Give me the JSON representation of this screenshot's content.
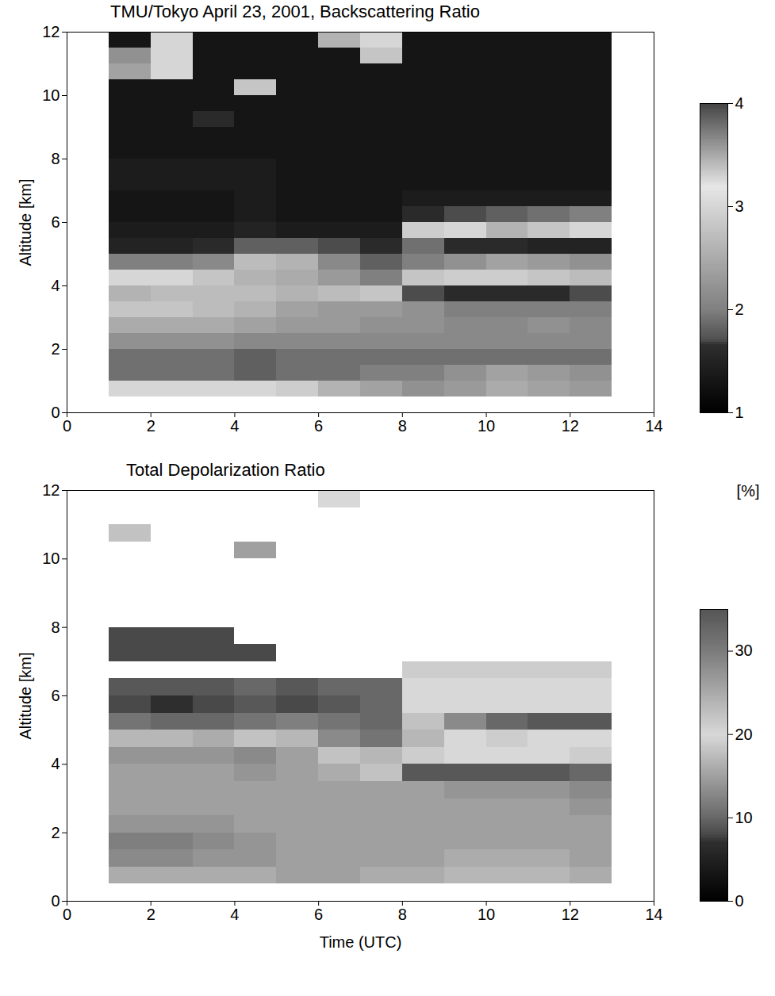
{
  "chart_data": [
    {
      "type": "heatmap",
      "title": "TMU/Tokyo April 23, 2001,  Backscattering Ratio",
      "x_label": null,
      "y_label": "Altitude [km]",
      "xlim": [
        0,
        14
      ],
      "xticks": [
        0,
        2,
        4,
        6,
        8,
        10,
        12,
        14
      ],
      "ylim": [
        0,
        12
      ],
      "yticks": [
        0,
        2,
        4,
        6,
        8,
        10,
        12
      ],
      "x_bins": [
        1,
        2,
        3,
        4,
        5,
        6,
        7,
        8,
        9,
        10,
        11,
        12,
        13
      ],
      "y_bins": [
        0.5,
        1,
        1.5,
        2,
        2.5,
        3,
        3.5,
        4,
        4.5,
        5,
        5.5,
        6,
        6.5,
        7,
        7.5,
        8,
        8.5,
        9,
        9.5,
        10,
        10.5,
        11,
        11.5,
        12
      ],
      "cells": [
        [
          3.0,
          3.0,
          3.0,
          3.0,
          2.9,
          2.6,
          2.4,
          2.2,
          2.3,
          2.5,
          2.4,
          2.3
        ],
        [
          1.9,
          1.9,
          1.9,
          1.8,
          1.9,
          1.9,
          2.0,
          2.0,
          2.2,
          2.4,
          2.3,
          2.2
        ],
        [
          1.9,
          1.9,
          1.9,
          1.8,
          1.9,
          1.9,
          1.9,
          1.9,
          1.9,
          1.9,
          1.9,
          1.9
        ],
        [
          2.2,
          2.2,
          2.2,
          2.1,
          2.1,
          2.1,
          2.1,
          2.1,
          2.1,
          2.1,
          2.1,
          2.1
        ],
        [
          2.5,
          2.5,
          2.5,
          2.4,
          2.3,
          2.3,
          2.2,
          2.2,
          2.1,
          2.1,
          2.2,
          2.1
        ],
        [
          2.8,
          2.8,
          2.7,
          2.6,
          2.4,
          2.3,
          2.3,
          2.2,
          2.0,
          2.0,
          2.0,
          2.0
        ],
        [
          2.6,
          2.7,
          2.7,
          2.7,
          2.6,
          2.7,
          2.8,
          1.7,
          1.6,
          1.6,
          1.6,
          1.7
        ],
        [
          3.0,
          3.0,
          2.8,
          2.6,
          2.5,
          2.3,
          2.0,
          2.8,
          2.9,
          2.9,
          2.8,
          2.7
        ],
        [
          2.0,
          2.0,
          2.1,
          2.7,
          2.6,
          2.1,
          1.8,
          2.0,
          2.2,
          2.4,
          2.3,
          2.2
        ],
        [
          1.5,
          1.5,
          1.6,
          1.8,
          1.8,
          1.7,
          1.6,
          1.9,
          1.6,
          1.6,
          1.5,
          1.5
        ],
        [
          1.4,
          1.4,
          1.4,
          1.5,
          1.4,
          1.4,
          1.4,
          2.9,
          3.0,
          2.6,
          2.8,
          3.0
        ],
        [
          1.3,
          1.3,
          1.3,
          1.4,
          1.3,
          1.3,
          1.3,
          1.6,
          1.7,
          1.8,
          1.9,
          2.0
        ],
        [
          1.3,
          1.3,
          1.3,
          1.4,
          1.3,
          1.3,
          1.3,
          1.4,
          1.4,
          1.4,
          1.4,
          1.4
        ],
        [
          1.4,
          1.4,
          1.4,
          1.4,
          1.3,
          1.3,
          1.3,
          1.3,
          1.3,
          1.3,
          1.3,
          1.3
        ],
        [
          1.4,
          1.4,
          1.4,
          1.4,
          1.3,
          1.3,
          1.3,
          1.3,
          1.3,
          1.3,
          1.3,
          1.3
        ],
        [
          1.3,
          1.3,
          1.3,
          1.3,
          1.3,
          1.3,
          1.3,
          1.3,
          1.3,
          1.3,
          1.3,
          1.3
        ],
        [
          1.3,
          1.3,
          1.3,
          1.3,
          1.3,
          1.3,
          1.3,
          1.3,
          1.3,
          1.3,
          1.3,
          1.3
        ],
        [
          1.3,
          1.3,
          1.6,
          1.3,
          1.3,
          1.3,
          1.3,
          1.3,
          1.3,
          1.3,
          1.3,
          1.3
        ],
        [
          1.3,
          1.3,
          1.3,
          1.3,
          1.3,
          1.3,
          1.3,
          1.3,
          1.3,
          1.3,
          1.3,
          1.3
        ],
        [
          1.3,
          1.3,
          1.3,
          2.8,
          1.3,
          1.3,
          1.3,
          1.3,
          1.3,
          1.3,
          1.3,
          1.3
        ],
        [
          2.4,
          3.0,
          1.3,
          1.3,
          1.3,
          1.3,
          1.3,
          1.3,
          1.3,
          1.3,
          1.3,
          1.3
        ],
        [
          2.2,
          3.0,
          1.3,
          1.3,
          1.3,
          1.3,
          2.8,
          1.3,
          1.3,
          1.3,
          1.3,
          1.3
        ],
        [
          1.3,
          3.0,
          1.3,
          1.3,
          1.3,
          2.6,
          3.0,
          1.3,
          1.3,
          1.3,
          1.3,
          1.3
        ]
      ],
      "colorbar": {
        "range": [
          1,
          4
        ],
        "ticks": [
          1,
          2,
          3,
          4
        ],
        "label": null
      }
    },
    {
      "type": "heatmap",
      "title": "Total Depolarization Ratio",
      "x_label": "Time (UTC)",
      "y_label": "Altitude [km]",
      "xlim": [
        0,
        14
      ],
      "xticks": [
        0,
        2,
        4,
        6,
        8,
        10,
        12,
        14
      ],
      "ylim": [
        0,
        12
      ],
      "yticks": [
        0,
        2,
        4,
        6,
        8,
        10,
        12
      ],
      "x_bins": [
        1,
        2,
        3,
        4,
        5,
        6,
        7,
        8,
        9,
        10,
        11,
        12,
        13
      ],
      "y_bins": [
        0.5,
        1,
        1.5,
        2,
        2.5,
        3,
        3.5,
        4,
        4.5,
        5,
        5.5,
        6,
        6.5,
        7,
        7.5,
        8,
        8.5,
        9,
        9.5,
        10,
        10.5,
        11,
        11.5,
        12
      ],
      "cells": [
        [
          16,
          16,
          16,
          16,
          15,
          15,
          16,
          16,
          17,
          17,
          17,
          16
        ],
        [
          13,
          13,
          14,
          14,
          15,
          15,
          15,
          15,
          16,
          16,
          16,
          15
        ],
        [
          12,
          12,
          13,
          14,
          15,
          15,
          15,
          15,
          15,
          15,
          15,
          15
        ],
        [
          14,
          14,
          14,
          15,
          15,
          15,
          15,
          15,
          15,
          15,
          15,
          15
        ],
        [
          15,
          15,
          15,
          15,
          15,
          15,
          15,
          15,
          15,
          15,
          15,
          14
        ],
        [
          15,
          15,
          15,
          15,
          15,
          15,
          15,
          15,
          14,
          14,
          14,
          13
        ],
        [
          15,
          15,
          15,
          14,
          15,
          16,
          18,
          9,
          9,
          9,
          9,
          10
        ],
        [
          14,
          14,
          14,
          13,
          15,
          18,
          17,
          19,
          20,
          20,
          20,
          19
        ],
        [
          17,
          17,
          16,
          18,
          17,
          13,
          11,
          17,
          20,
          19,
          20,
          20
        ],
        [
          11,
          10,
          10,
          11,
          12,
          11,
          10,
          18,
          13,
          10,
          9,
          9
        ],
        [
          8,
          7,
          8,
          9,
          8,
          9,
          10,
          20,
          20,
          20,
          20,
          20
        ],
        [
          9,
          9,
          9,
          10,
          9,
          10,
          10,
          20,
          20,
          20,
          20,
          20
        ],
        [
          null,
          null,
          null,
          null,
          null,
          null,
          null,
          19,
          19,
          19,
          19,
          19
        ],
        [
          8,
          8,
          8,
          8,
          null,
          null,
          null,
          null,
          null,
          null,
          null,
          null
        ],
        [
          8,
          8,
          8,
          null,
          null,
          null,
          null,
          null,
          null,
          null,
          null,
          null
        ],
        [
          null,
          null,
          null,
          null,
          null,
          null,
          null,
          null,
          null,
          null,
          null,
          null
        ],
        [
          null,
          null,
          null,
          null,
          null,
          null,
          null,
          null,
          null,
          null,
          null,
          null
        ],
        [
          null,
          null,
          null,
          null,
          null,
          null,
          null,
          null,
          null,
          null,
          null,
          null
        ],
        [
          null,
          null,
          null,
          null,
          null,
          null,
          null,
          null,
          null,
          null,
          null,
          null
        ],
        [
          null,
          null,
          null,
          15,
          null,
          null,
          null,
          null,
          null,
          null,
          null,
          null
        ],
        [
          18,
          null,
          null,
          null,
          null,
          null,
          null,
          null,
          null,
          null,
          null,
          null
        ],
        [
          null,
          null,
          null,
          null,
          null,
          null,
          null,
          null,
          null,
          null,
          null,
          null
        ],
        [
          null,
          null,
          null,
          null,
          null,
          20,
          null,
          null,
          null,
          null,
          null,
          null
        ]
      ],
      "colorbar": {
        "range": [
          0,
          35
        ],
        "ticks": [
          0,
          10,
          20,
          30
        ],
        "label": "[%]"
      }
    }
  ]
}
